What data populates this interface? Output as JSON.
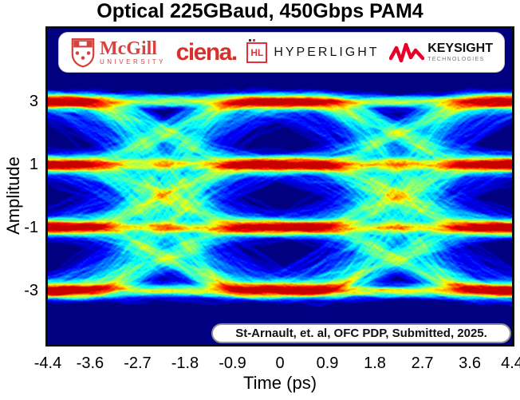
{
  "title": "Optical 225GBaud, 450Gbps PAM4",
  "banner": {
    "mcgill": {
      "name": "McGill",
      "sub": "UNIVERSITY",
      "color": "#d6433e"
    },
    "ciena": {
      "name": "ciena.",
      "color": "#d5322d"
    },
    "hyperlight": {
      "monogram": "HL",
      "name": "HYPERLIGHT",
      "color": "#e8303a"
    },
    "keysight": {
      "name": "KEYSIGHT",
      "sub": "TECHNOLOGIES",
      "color": "#e90029"
    }
  },
  "annotation": "St-Arnault, et. al, OFC PDP, Submitted, 2025.",
  "chart_data": {
    "type": "heatmap",
    "subtype": "eye-diagram",
    "title": "Optical 225GBaud, 450Gbps PAM4",
    "xlabel": "Time (ps)",
    "ylabel": "Amplitude",
    "xlim": [
      -4.4,
      4.4
    ],
    "x_tick_values": [
      -4.4,
      -3.6,
      -2.7,
      -1.8,
      -0.9,
      0,
      0.9,
      1.8,
      2.7,
      3.6,
      4.4
    ],
    "x_tick_labels": [
      "-4.4",
      "-3.6",
      "-2.7",
      "-1.8",
      "-0.9",
      "0",
      "0.9",
      "1.8",
      "2.7",
      "3.6",
      "4.4"
    ],
    "y_tick_values": [
      3,
      1,
      -1,
      -3
    ],
    "y_tick_labels": [
      "3",
      "1",
      "-1",
      "-3"
    ],
    "modulation": "PAM4",
    "symbol_rate_gbaud": 225,
    "bitrate_gbps": 450,
    "pam4_levels": [
      -3,
      -1,
      1,
      3
    ],
    "symbol_instants_ps": [
      -4.4,
      0,
      4.4
    ],
    "eye_crossings_ps": [
      -2.2,
      2.2
    ],
    "colormap": "jet",
    "hot_spot_color": "#d62c0a",
    "background_color": "#000083",
    "haze_color": "#27c4f2",
    "legend": "none",
    "grid": false
  }
}
